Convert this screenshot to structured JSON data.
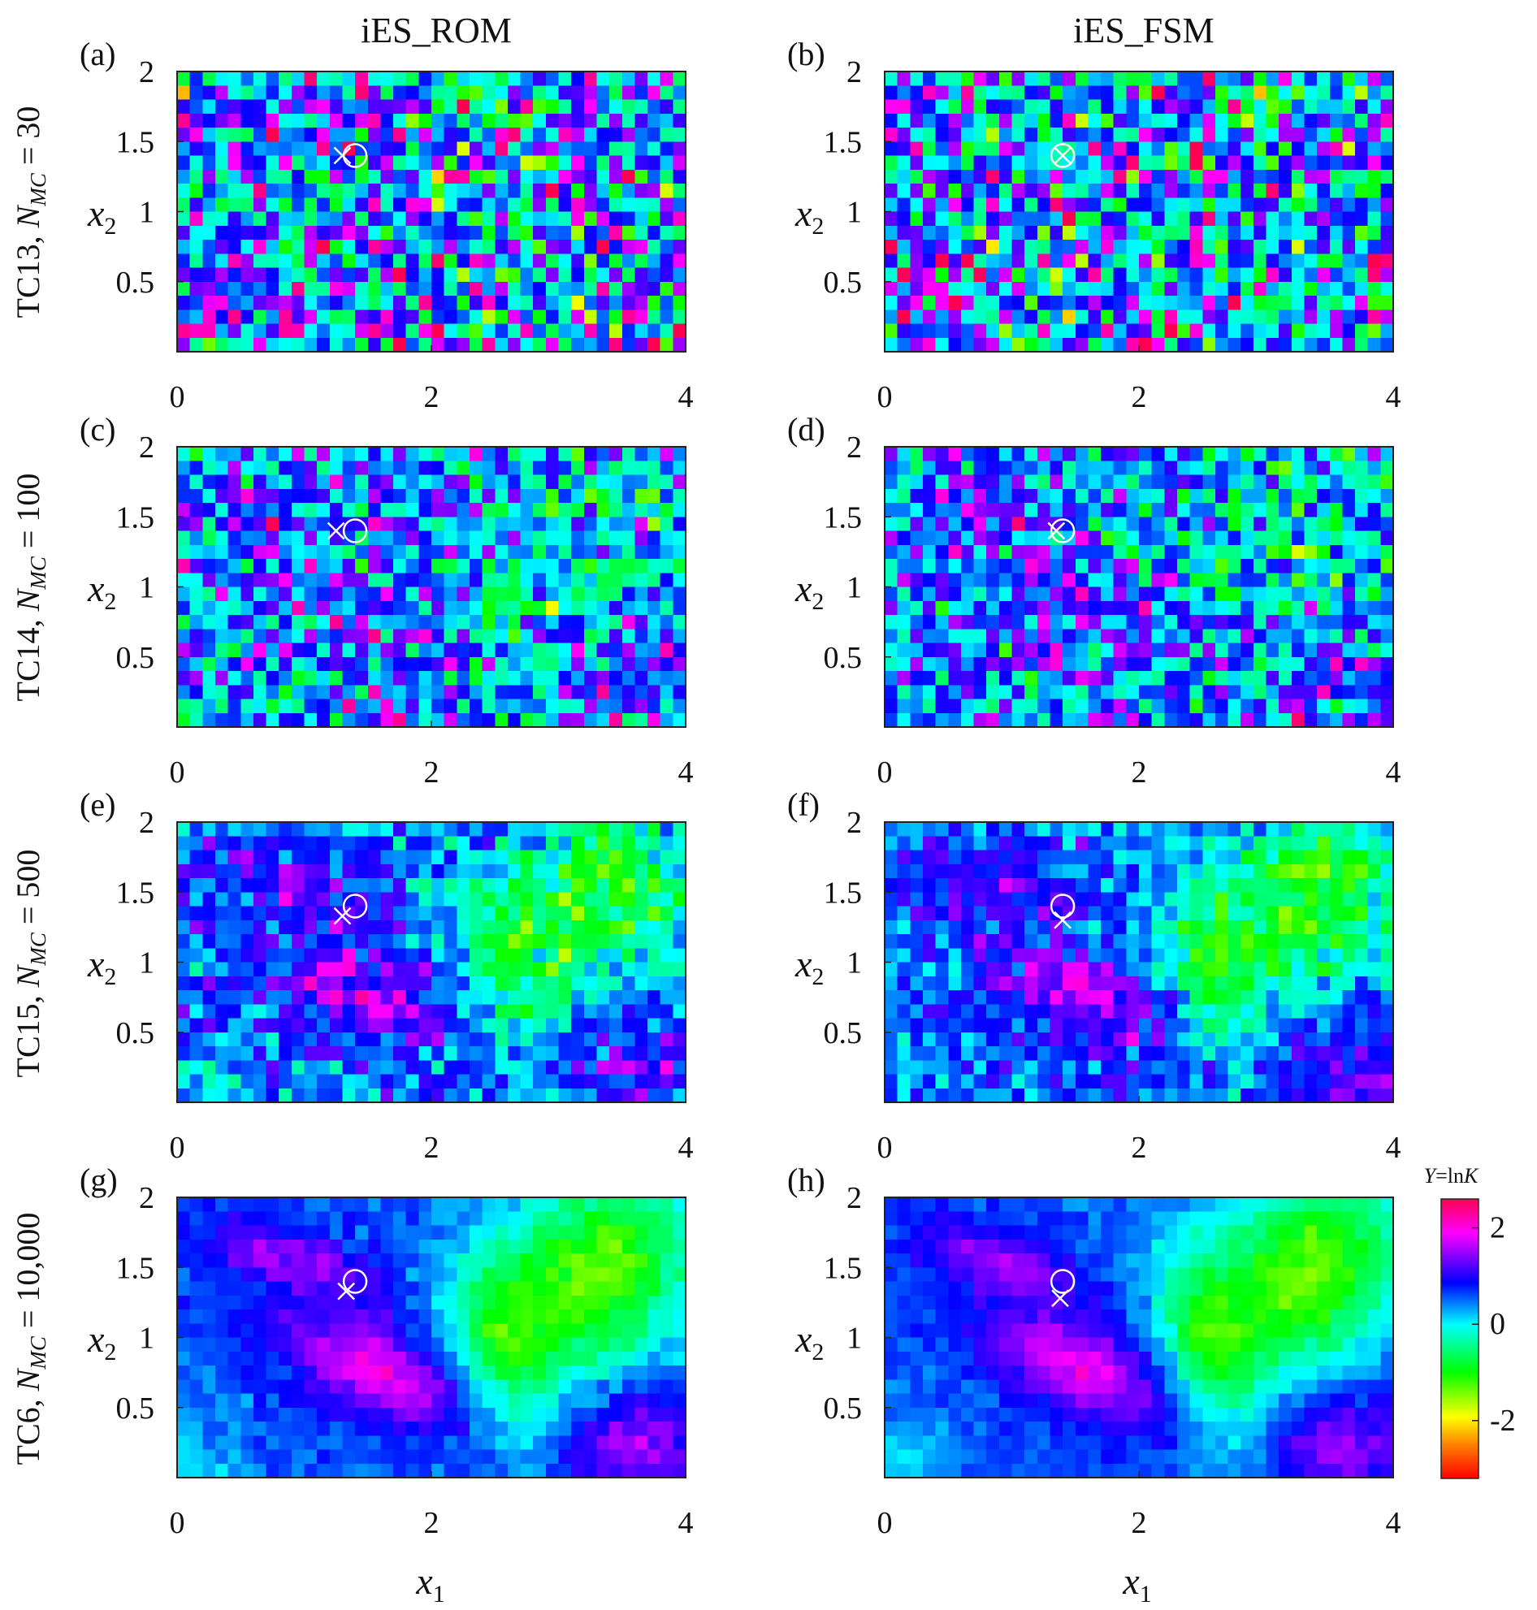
{
  "column_titles": [
    "iES_ROM",
    "iES_FSM"
  ],
  "row_labels": [
    {
      "prefix": "TC13, ",
      "n": "N",
      "sub": "MC",
      "suffix": " = 30"
    },
    {
      "prefix": "TC14, ",
      "n": "N",
      "sub": "MC",
      "suffix": " = 100"
    },
    {
      "prefix": "TC15, ",
      "n": "N",
      "sub": "MC",
      "suffix": " = 500"
    },
    {
      "prefix": "TC6, ",
      "n": "N",
      "sub": "MC",
      "suffix": " = 10,000"
    }
  ],
  "panel_labels": [
    "(a)",
    "(b)",
    "(c)",
    "(d)",
    "(e)",
    "(f)",
    "(g)",
    "(h)"
  ],
  "axis_vars": {
    "x_main": "x",
    "x_sub": "1",
    "y_main": "x",
    "y_sub": "2"
  },
  "colorbar": {
    "title_italic": "Y",
    "title_rest": "=ln",
    "title_italic2": "K",
    "ticks": [
      {
        "value": 2,
        "label": "2"
      },
      {
        "value": 0,
        "label": "0"
      },
      {
        "value": -2,
        "label": "-2"
      }
    ],
    "range": [
      -3.2,
      2.6
    ],
    "colormap": [
      "#ff0000",
      "#ffff00",
      "#00ff00",
      "#00ffff",
      "#0000ff",
      "#ff00ff",
      "#ff0060"
    ]
  },
  "marker_colors": {
    "marker": "#ffffff"
  },
  "chart_data": [
    {
      "id": "a",
      "type": "heatmap",
      "title": "iES_ROM",
      "row_label": "TC13, N_MC = 30",
      "xlim": [
        0,
        4
      ],
      "ylim": [
        0,
        2
      ],
      "xticks": [
        "0",
        "2",
        "4"
      ],
      "yticks": [
        "0.5",
        "1",
        "1.5",
        "2"
      ],
      "grid_cells": [
        40,
        20
      ],
      "noise": 0.9,
      "smooth": 0.1,
      "seed": 11,
      "true_location": [
        1.4,
        1.4
      ],
      "estimated_location": [
        1.3,
        1.4
      ]
    },
    {
      "id": "b",
      "type": "heatmap",
      "title": "iES_FSM",
      "row_label": "TC13, N_MC = 30",
      "xlim": [
        0,
        4
      ],
      "ylim": [
        0,
        2
      ],
      "xticks": [
        "0",
        "2",
        "4"
      ],
      "yticks": [
        "0.5",
        "1",
        "1.5",
        "2"
      ],
      "grid_cells": [
        40,
        20
      ],
      "noise": 0.9,
      "smooth": 0.1,
      "seed": 23,
      "true_location": [
        1.4,
        1.4
      ],
      "estimated_location": [
        1.4,
        1.4
      ]
    },
    {
      "id": "c",
      "type": "heatmap",
      "title": "iES_ROM",
      "row_label": "TC14, N_MC = 100",
      "xlim": [
        0,
        4
      ],
      "ylim": [
        0,
        2
      ],
      "xticks": [
        "0",
        "2",
        "4"
      ],
      "yticks": [
        "0.5",
        "1",
        "1.5",
        "2"
      ],
      "grid_cells": [
        40,
        20
      ],
      "noise": 0.65,
      "smooth": 0.35,
      "seed": 37,
      "true_location": [
        1.4,
        1.4
      ],
      "estimated_location": [
        1.25,
        1.4
      ]
    },
    {
      "id": "d",
      "type": "heatmap",
      "title": "iES_FSM",
      "row_label": "TC14, N_MC = 100",
      "xlim": [
        0,
        4
      ],
      "ylim": [
        0,
        2
      ],
      "xticks": [
        "0",
        "2",
        "4"
      ],
      "yticks": [
        "0.5",
        "1",
        "1.5",
        "2"
      ],
      "grid_cells": [
        40,
        20
      ],
      "noise": 0.6,
      "smooth": 0.4,
      "seed": 41,
      "true_location": [
        1.4,
        1.4
      ],
      "estimated_location": [
        1.35,
        1.4
      ]
    },
    {
      "id": "e",
      "type": "heatmap",
      "title": "iES_ROM",
      "row_label": "TC15, N_MC = 500",
      "xlim": [
        0,
        4
      ],
      "ylim": [
        0,
        2
      ],
      "xticks": [
        "0",
        "2",
        "4"
      ],
      "yticks": [
        "0.5",
        "1",
        "1.5",
        "2"
      ],
      "grid_cells": [
        40,
        20
      ],
      "noise": 0.35,
      "smooth": 0.8,
      "seed": 53,
      "true_location": [
        1.4,
        1.4
      ],
      "estimated_location": [
        1.3,
        1.33
      ]
    },
    {
      "id": "f",
      "type": "heatmap",
      "title": "iES_FSM",
      "row_label": "TC15, N_MC = 500",
      "xlim": [
        0,
        4
      ],
      "ylim": [
        0,
        2
      ],
      "xticks": [
        "0",
        "2",
        "4"
      ],
      "yticks": [
        "0.5",
        "1",
        "1.5",
        "2"
      ],
      "grid_cells": [
        40,
        20
      ],
      "noise": 0.3,
      "smooth": 0.85,
      "seed": 67,
      "true_location": [
        1.4,
        1.4
      ],
      "estimated_location": [
        1.4,
        1.3
      ]
    },
    {
      "id": "g",
      "type": "heatmap",
      "title": "iES_ROM",
      "row_label": "TC6, N_MC = 10,000",
      "xlim": [
        0,
        4
      ],
      "ylim": [
        0,
        2
      ],
      "xticks": [
        "0",
        "2",
        "4"
      ],
      "yticks": [
        "0.5",
        "1",
        "1.5",
        "2"
      ],
      "grid_cells": [
        40,
        20
      ],
      "noise": 0.12,
      "smooth": 1.0,
      "seed": 71,
      "true_location": [
        1.4,
        1.4
      ],
      "estimated_location": [
        1.33,
        1.33
      ]
    },
    {
      "id": "h",
      "type": "heatmap",
      "title": "iES_FSM",
      "row_label": "TC6, N_MC = 10,000",
      "xlim": [
        0,
        4
      ],
      "ylim": [
        0,
        2
      ],
      "xticks": [
        "0",
        "2",
        "4"
      ],
      "yticks": [
        "0.5",
        "1",
        "1.5",
        "2"
      ],
      "grid_cells": [
        40,
        20
      ],
      "noise": 0.1,
      "smooth": 1.0,
      "seed": 83,
      "true_location": [
        1.4,
        1.4
      ],
      "estimated_location": [
        1.38,
        1.28
      ]
    }
  ]
}
